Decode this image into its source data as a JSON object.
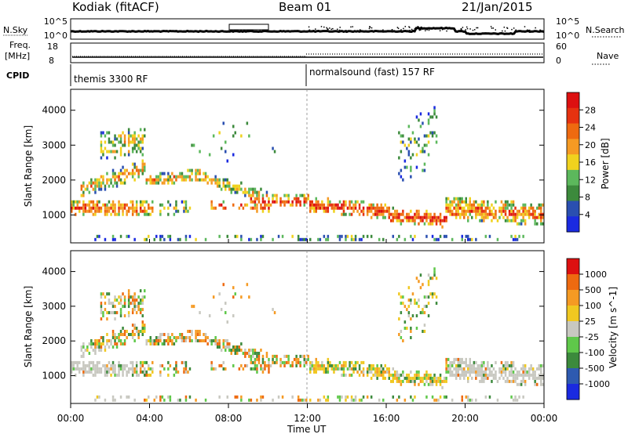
{
  "header": {
    "station": "Kodiak (fitACF)",
    "beam": "Beam 01",
    "date": "21/Jan/2015"
  },
  "panels": {
    "nsky_label": "N.Sky",
    "nsky_ticks": [
      "10^5",
      "10^0"
    ],
    "nsearch_label": "N.Search",
    "nsearch_ticks": [
      "10^5",
      "10^0"
    ],
    "freq_label_1": "Freq.",
    "freq_label_2": "[MHz]",
    "freq_ticks": [
      "18",
      "8"
    ],
    "nave_label": "Nave",
    "nave_ticks": [
      "60",
      "0"
    ],
    "cpid_label": "CPID",
    "cpid_1": "themis 3300 RF",
    "cpid_2": "normalsound (fast) 157 RF"
  },
  "chart_data": [
    {
      "type": "heatmap",
      "name": "power",
      "ylabel": "Slant Range [km]",
      "yticks": [
        "1000",
        "2000",
        "3000",
        "4000"
      ],
      "ylim": [
        200,
        4600
      ],
      "colorbar_label": "Power [dB]",
      "colorbar_ticks": [
        "28",
        "24",
        "20",
        "16",
        "12",
        "8",
        "4"
      ],
      "colors": [
        "#1a2ae0",
        "#2a4fb0",
        "#3c8a3c",
        "#5cb85c",
        "#f0d21e",
        "#f59a23",
        "#ee6a10",
        "#e63210",
        "#dd1010"
      ]
    },
    {
      "type": "heatmap",
      "name": "velocity",
      "ylabel": "Slant Range [km]",
      "yticks": [
        "1000",
        "2000",
        "3000",
        "4000"
      ],
      "ylim": [
        200,
        4600
      ],
      "colorbar_label": "Velocity [m s^-1]",
      "colorbar_ticks": [
        "1000",
        "500",
        "100",
        "25",
        "-25",
        "-100",
        "-500",
        "-1000"
      ],
      "colors": [
        "#1a2ae0",
        "#2e5ab0",
        "#3c8a3c",
        "#5fc84a",
        "#c8c8c0",
        "#f0c820",
        "#f59a23",
        "#ee6a10",
        "#dd1010"
      ]
    }
  ],
  "xaxis": {
    "label": "Time UT",
    "ticks": [
      "00:00",
      "04:00",
      "08:00",
      "12:00",
      "16:00",
      "20:00",
      "00:00"
    ]
  }
}
